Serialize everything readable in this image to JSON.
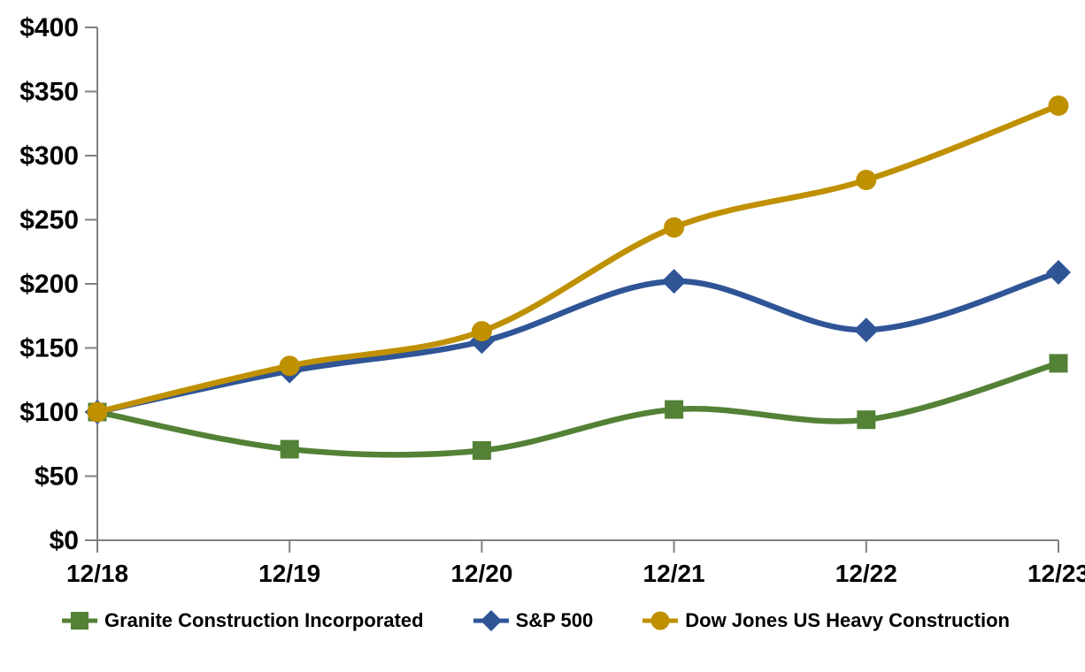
{
  "chart_data": {
    "type": "line",
    "title": "",
    "xlabel": "",
    "ylabel": "",
    "x_labels": [
      "12/18",
      "12/19",
      "12/20",
      "12/21",
      "12/22",
      "12/23"
    ],
    "y_tick_values": [
      0,
      50,
      100,
      150,
      200,
      250,
      300,
      350,
      400
    ],
    "y_tick_labels": [
      "$0",
      "$50",
      "$100",
      "$150",
      "$200",
      "$250",
      "$300",
      "$350",
      "$400"
    ],
    "ylim": [
      0,
      400
    ],
    "grid": false,
    "legend_position": "bottom",
    "axis_color": "#808080",
    "text_color": "#000000",
    "series": [
      {
        "name": "Granite Construction Incorporated",
        "marker": "square",
        "color": "#538135",
        "values": [
          100,
          71,
          70,
          102,
          94,
          138
        ]
      },
      {
        "name": "S&P 500",
        "marker": "diamond",
        "color": "#2F5597",
        "values": [
          100,
          132,
          155,
          202,
          164,
          209
        ]
      },
      {
        "name": "Dow Jones US Heavy Construction",
        "marker": "circle",
        "color": "#BF9000",
        "values": [
          100,
          136,
          163,
          244,
          281,
          339
        ]
      }
    ]
  }
}
